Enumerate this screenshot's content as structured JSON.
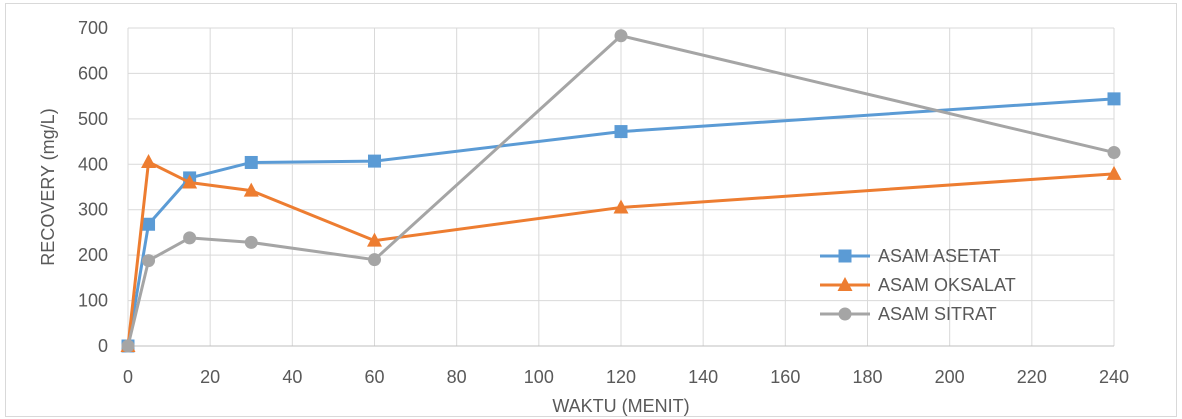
{
  "chart_data": {
    "type": "line",
    "x_axis_type": "value",
    "title": "",
    "xlabel": "WAKTU (MENIT)",
    "ylabel": "RECOVERY (mg/L)",
    "xlim": [
      0,
      240
    ],
    "ylim": [
      0,
      700
    ],
    "x_ticks": [
      0,
      20,
      40,
      60,
      80,
      100,
      120,
      140,
      160,
      180,
      200,
      220,
      240
    ],
    "y_ticks": [
      0,
      100,
      200,
      300,
      400,
      500,
      600,
      700
    ],
    "grid": true,
    "legend_position": "bottom-right",
    "series": [
      {
        "name": "ASAM ASETAT",
        "color": "#5b9bd5",
        "marker": "square",
        "x": [
          0,
          5,
          15,
          30,
          60,
          120,
          240
        ],
        "y": [
          0,
          268,
          370,
          404,
          407,
          472,
          544
        ]
      },
      {
        "name": "ASAM OKSALAT",
        "color": "#ed7d31",
        "marker": "triangle",
        "x": [
          0,
          5,
          15,
          30,
          60,
          120,
          240
        ],
        "y": [
          0,
          405,
          360,
          342,
          232,
          305,
          379
        ]
      },
      {
        "name": "ASAM SITRAT",
        "color": "#a5a5a5",
        "marker": "circle",
        "x": [
          0,
          5,
          15,
          30,
          60,
          120,
          240
        ],
        "y": [
          0,
          188,
          238,
          228,
          190,
          683,
          426
        ]
      }
    ]
  }
}
